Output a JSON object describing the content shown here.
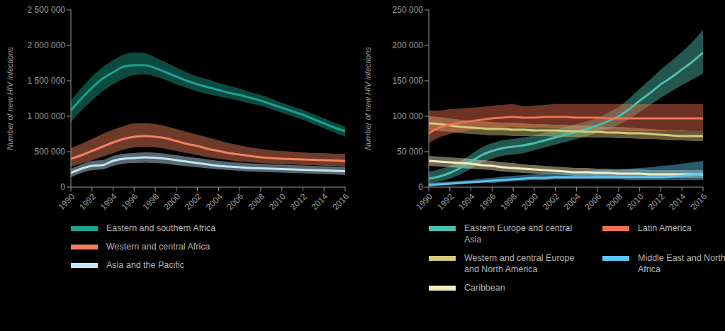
{
  "chart_data": [
    {
      "type": "line",
      "y_label": "Number of new HIV infections",
      "x": [
        1990,
        1991,
        1992,
        1993,
        1994,
        1995,
        1996,
        1997,
        1998,
        1999,
        2000,
        2001,
        2002,
        2003,
        2004,
        2005,
        2006,
        2007,
        2008,
        2009,
        2010,
        2011,
        2012,
        2013,
        2014,
        2015,
        2016
      ],
      "xlim": [
        1990,
        2016
      ],
      "xticks": [
        1990,
        1992,
        1994,
        1996,
        1998,
        2000,
        2002,
        2004,
        2006,
        2008,
        2010,
        2012,
        2014,
        2016
      ],
      "ylim": [
        0,
        2500000
      ],
      "yticks": [
        0,
        {
          "value": 500000,
          "label": "500 000"
        },
        {
          "value": 1000000,
          "label": "1 000 000"
        },
        {
          "value": 1500000,
          "label": "1 500 000"
        },
        {
          "value": 2000000,
          "label": "2 000 000"
        },
        {
          "value": 2500000,
          "label": "2 500 000"
        }
      ],
      "grid": false,
      "legend": "bottom",
      "series": [
        {
          "name": "Eastern and southern Africa",
          "color": "#1aa391",
          "values": [
            1080000,
            1250000,
            1400000,
            1530000,
            1620000,
            1700000,
            1720000,
            1720000,
            1680000,
            1620000,
            1560000,
            1500000,
            1450000,
            1410000,
            1370000,
            1330000,
            1300000,
            1260000,
            1220000,
            1170000,
            1120000,
            1070000,
            1020000,
            960000,
            900000,
            840000,
            790000
          ],
          "lower": [
            920000,
            1080000,
            1220000,
            1350000,
            1450000,
            1530000,
            1580000,
            1590000,
            1560000,
            1510000,
            1450000,
            1400000,
            1350000,
            1310000,
            1280000,
            1250000,
            1220000,
            1180000,
            1150000,
            1100000,
            1050000,
            1000000,
            950000,
            890000,
            830000,
            770000,
            710000
          ],
          "upper": [
            1220000,
            1400000,
            1560000,
            1690000,
            1790000,
            1870000,
            1900000,
            1890000,
            1830000,
            1760000,
            1690000,
            1620000,
            1560000,
            1520000,
            1470000,
            1430000,
            1390000,
            1340000,
            1300000,
            1250000,
            1190000,
            1140000,
            1090000,
            1030000,
            970000,
            910000,
            860000
          ]
        },
        {
          "name": "Western and central Africa",
          "color": "#f4805e",
          "values": [
            400000,
            450000,
            510000,
            570000,
            630000,
            680000,
            710000,
            720000,
            710000,
            690000,
            650000,
            610000,
            580000,
            540000,
            510000,
            480000,
            460000,
            440000,
            420000,
            410000,
            400000,
            395000,
            390000,
            385000,
            380000,
            375000,
            370000
          ],
          "lower": [
            290000,
            330000,
            380000,
            430000,
            480000,
            530000,
            560000,
            570000,
            560000,
            540000,
            510000,
            480000,
            450000,
            420000,
            400000,
            380000,
            360000,
            350000,
            340000,
            330000,
            320000,
            320000,
            310000,
            310000,
            300000,
            300000,
            290000
          ],
          "upper": [
            550000,
            610000,
            680000,
            750000,
            810000,
            860000,
            900000,
            900000,
            890000,
            860000,
            820000,
            780000,
            740000,
            700000,
            660000,
            620000,
            590000,
            560000,
            540000,
            520000,
            510000,
            500000,
            490000,
            480000,
            480000,
            470000,
            470000
          ]
        },
        {
          "name": "Asia and the Pacific",
          "color": "#c4e6f7",
          "values": [
            200000,
            260000,
            300000,
            310000,
            370000,
            400000,
            410000,
            420000,
            415000,
            400000,
            380000,
            360000,
            340000,
            320000,
            300000,
            290000,
            280000,
            270000,
            265000,
            260000,
            255000,
            250000,
            245000,
            240000,
            235000,
            230000,
            225000
          ],
          "lower": [
            140000,
            200000,
            240000,
            250000,
            300000,
            330000,
            340000,
            345000,
            340000,
            330000,
            310000,
            295000,
            280000,
            265000,
            250000,
            240000,
            230000,
            220000,
            215000,
            210000,
            205000,
            200000,
            195000,
            190000,
            185000,
            180000,
            170000
          ],
          "upper": [
            260000,
            320000,
            370000,
            380000,
            440000,
            470000,
            480000,
            490000,
            485000,
            470000,
            450000,
            430000,
            410000,
            390000,
            370000,
            355000,
            345000,
            335000,
            330000,
            320000,
            315000,
            310000,
            305000,
            300000,
            295000,
            290000,
            285000
          ]
        }
      ]
    },
    {
      "type": "line",
      "y_label": "Number of new HIV infections",
      "x": [
        1990,
        1991,
        1992,
        1993,
        1994,
        1995,
        1996,
        1997,
        1998,
        1999,
        2000,
        2001,
        2002,
        2003,
        2004,
        2005,
        2006,
        2007,
        2008,
        2009,
        2010,
        2011,
        2012,
        2013,
        2014,
        2015,
        2016
      ],
      "xlim": [
        1990,
        2016
      ],
      "xticks": [
        1990,
        1992,
        1994,
        1996,
        1998,
        2000,
        2002,
        2004,
        2006,
        2008,
        2010,
        2012,
        2014,
        2016
      ],
      "ylim": [
        0,
        250000
      ],
      "yticks": [
        0,
        {
          "value": 50000,
          "label": "50 000"
        },
        {
          "value": 100000,
          "label": "100 000"
        },
        {
          "value": 150000,
          "label": "150 000"
        },
        {
          "value": 200000,
          "label": "200 000"
        },
        {
          "value": 250000,
          "label": "250 000"
        }
      ],
      "grid": false,
      "legend": "bottom",
      "series": [
        {
          "name": "Eastern Europe and central Asia",
          "color": "#4bbfae",
          "values": [
            12000,
            15000,
            20000,
            27000,
            36000,
            45000,
            51000,
            55000,
            57000,
            59000,
            62000,
            66000,
            70000,
            74000,
            78000,
            82000,
            87000,
            93000,
            100000,
            110000,
            122000,
            133000,
            145000,
            155000,
            166000,
            177000,
            190000
          ],
          "lower": [
            5000,
            8000,
            12000,
            18000,
            26000,
            34000,
            40000,
            44000,
            46000,
            48000,
            52000,
            56000,
            60000,
            64000,
            68000,
            72000,
            77000,
            82000,
            88000,
            96000,
            106000,
            116000,
            126000,
            135000,
            144000,
            152000,
            160000
          ],
          "upper": [
            22000,
            25000,
            30000,
            37000,
            46000,
            56000,
            62000,
            66000,
            68000,
            70000,
            73000,
            77000,
            81000,
            85000,
            89000,
            93000,
            98000,
            105000,
            113000,
            125000,
            139000,
            152000,
            166000,
            178000,
            191000,
            205000,
            222000
          ]
        },
        {
          "name": "Western and central Europe and North America",
          "color": "#d6c97c",
          "values": [
            90000,
            89000,
            87000,
            85000,
            84000,
            83000,
            82000,
            82000,
            81000,
            81000,
            80000,
            80000,
            80000,
            79000,
            79000,
            78000,
            78000,
            77000,
            77000,
            76000,
            76000,
            75000,
            74000,
            73000,
            72000,
            72000,
            72000
          ],
          "lower": [
            80000,
            79000,
            78000,
            76000,
            75000,
            74000,
            73000,
            73000,
            72000,
            72000,
            72000,
            72000,
            71000,
            71000,
            71000,
            70000,
            70000,
            70000,
            69000,
            69000,
            68000,
            68000,
            67000,
            66000,
            66000,
            65000,
            65000
          ],
          "upper": [
            100000,
            99000,
            97000,
            95000,
            94000,
            93000,
            92000,
            91000,
            91000,
            90000,
            89000,
            89000,
            88000,
            88000,
            87000,
            87000,
            86000,
            85000,
            85000,
            84000,
            83000,
            82000,
            81000,
            80000,
            80000,
            79000,
            79000
          ]
        },
        {
          "name": "Caribbean",
          "color": "#f5ecc1",
          "values": [
            37000,
            36000,
            35000,
            34000,
            33000,
            31000,
            30000,
            28000,
            27000,
            26000,
            25000,
            24000,
            23000,
            22000,
            21000,
            21000,
            20000,
            20000,
            19000,
            19000,
            19000,
            18000,
            18000,
            18000,
            18000,
            18000,
            18000
          ],
          "lower": [
            30000,
            29000,
            28000,
            27000,
            26000,
            25000,
            24000,
            22000,
            21000,
            20000,
            19000,
            18000,
            18000,
            17000,
            16000,
            16000,
            15000,
            15000,
            15000,
            14000,
            14000,
            14000,
            14000,
            13000,
            13000,
            13000,
            13000
          ],
          "upper": [
            44000,
            43000,
            42000,
            41000,
            40000,
            38000,
            37000,
            35000,
            34000,
            32000,
            31000,
            30000,
            29000,
            28000,
            27000,
            27000,
            26000,
            26000,
            25000,
            25000,
            25000,
            24000,
            24000,
            24000,
            24000,
            24000,
            24000
          ]
        },
        {
          "name": "Latin America",
          "color": "#f0704f",
          "values": [
            76000,
            84000,
            88000,
            91000,
            93000,
            95000,
            97000,
            98000,
            99000,
            98000,
            98000,
            99000,
            99000,
            99000,
            98000,
            98000,
            98000,
            97000,
            97000,
            97000,
            97000,
            97000,
            97000,
            97000,
            97000,
            97000,
            97000
          ],
          "lower": [
            62000,
            70000,
            75000,
            78000,
            80000,
            82000,
            83000,
            84000,
            85000,
            84000,
            84000,
            84000,
            83000,
            83000,
            82000,
            81000,
            81000,
            80000,
            80000,
            79000,
            79000,
            79000,
            79000,
            79000,
            79000,
            79000,
            79000
          ],
          "upper": [
            108000,
            108000,
            110000,
            111000,
            112000,
            113000,
            115000,
            116000,
            117000,
            114000,
            115000,
            116000,
            117000,
            117000,
            117000,
            117000,
            117000,
            117000,
            117000,
            117000,
            117000,
            117000,
            117000,
            117000,
            117000,
            117000,
            117000
          ]
        },
        {
          "name": "Middle East and North Africa",
          "color": "#5ec3ef",
          "values": [
            3000,
            4000,
            5000,
            6000,
            7000,
            8000,
            9000,
            10000,
            11000,
            12000,
            13000,
            13000,
            14000,
            14000,
            14000,
            14000,
            14000,
            14000,
            14000,
            14000,
            14000,
            14000,
            14000,
            15000,
            16000,
            17000,
            18000
          ],
          "lower": [
            1000,
            2000,
            3000,
            4000,
            5000,
            6000,
            6000,
            7000,
            8000,
            9000,
            10000,
            10000,
            11000,
            11000,
            11000,
            11000,
            11000,
            11000,
            11000,
            10000,
            10000,
            10000,
            10000,
            10000,
            10000,
            10000,
            10000
          ],
          "upper": [
            6000,
            7000,
            8000,
            9000,
            10000,
            12000,
            13000,
            15000,
            16000,
            17000,
            18000,
            19000,
            20000,
            21000,
            22000,
            23000,
            24000,
            24000,
            25000,
            26000,
            27000,
            28000,
            30000,
            31000,
            33000,
            35000,
            37000
          ]
        }
      ]
    }
  ]
}
